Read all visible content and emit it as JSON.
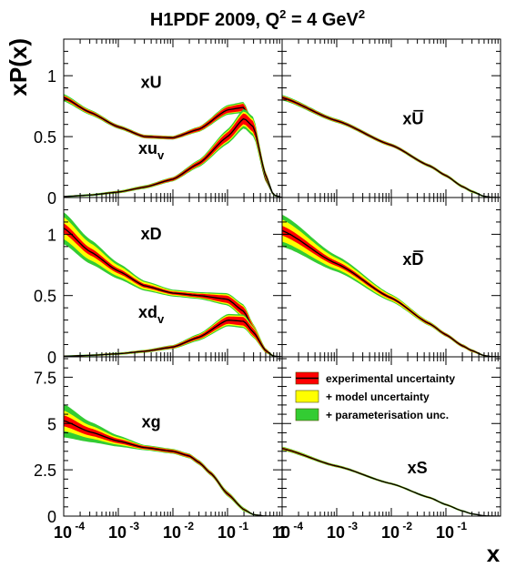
{
  "title": {
    "prefix": "H1PDF 2009, Q",
    "sup": "2",
    "suffix": " = 4 GeV",
    "sup2": "2"
  },
  "ylabel": "xP(x)",
  "xlabel": "x",
  "colors": {
    "experimental": "#ff0000",
    "model": "#ffff00",
    "parameterisation": "#33cc33",
    "central": "#000000",
    "outline": "#4d4d00"
  },
  "legend": {
    "placement": "top of right-bottom panel",
    "entries": [
      {
        "key": "experimental",
        "label": "experimental uncertainty"
      },
      {
        "key": "model",
        "label": "+ model uncertainty"
      },
      {
        "key": "parameterisation",
        "label": "+ parameterisation unc."
      }
    ]
  },
  "chart_data": [
    {
      "type": "area",
      "panel": "top-left",
      "xscale": "log",
      "xlim": [
        0.0001,
        1
      ],
      "ylim": [
        0,
        1.3
      ],
      "yticks": [
        0,
        0.5,
        1
      ],
      "ytick_labels": [
        "0",
        "0.5",
        "1"
      ],
      "series": [
        {
          "name": "xU",
          "x": [
            0.0001,
            0.0003,
            0.001,
            0.003,
            0.01,
            0.03,
            0.1,
            0.2,
            0.3,
            0.5,
            0.7,
            1
          ],
          "y": [
            0.82,
            0.7,
            0.58,
            0.5,
            0.49,
            0.56,
            0.72,
            0.74,
            0.55,
            0.15,
            0.02,
            0
          ],
          "exp": [
            0.015,
            0.012,
            0.01,
            0.01,
            0.01,
            0.015,
            0.025,
            0.03,
            0.03,
            0.015,
            0.005,
            0
          ],
          "mod": [
            0.02,
            0.016,
            0.012,
            0.012,
            0.012,
            0.018,
            0.03,
            0.035,
            0.035,
            0.018,
            0.006,
            0
          ],
          "par": [
            0.03,
            0.022,
            0.016,
            0.015,
            0.015,
            0.022,
            0.04,
            0.045,
            0.045,
            0.022,
            0.008,
            0
          ]
        },
        {
          "name": "xu",
          "sub": "v",
          "x": [
            0.0001,
            0.0003,
            0.001,
            0.003,
            0.01,
            0.03,
            0.1,
            0.2,
            0.3,
            0.5,
            0.7,
            1
          ],
          "y": [
            0.008,
            0.02,
            0.045,
            0.085,
            0.15,
            0.28,
            0.5,
            0.65,
            0.58,
            0.18,
            0.02,
            0
          ],
          "exp": [
            0.003,
            0.004,
            0.006,
            0.008,
            0.012,
            0.018,
            0.035,
            0.045,
            0.045,
            0.02,
            0.005,
            0
          ],
          "mod": [
            0.004,
            0.005,
            0.008,
            0.01,
            0.014,
            0.022,
            0.045,
            0.06,
            0.06,
            0.025,
            0.006,
            0
          ],
          "par": [
            0.006,
            0.008,
            0.011,
            0.014,
            0.018,
            0.03,
            0.06,
            0.08,
            0.08,
            0.03,
            0.008,
            0
          ]
        }
      ]
    },
    {
      "type": "area",
      "panel": "top-right",
      "xscale": "log",
      "xlim": [
        0.0001,
        1
      ],
      "ylim": [
        0,
        1.3
      ],
      "series": [
        {
          "name": "xU",
          "bar": true,
          "x": [
            0.0001,
            0.001,
            0.01,
            0.05,
            0.1,
            0.2,
            0.3,
            0.5,
            0.7,
            1
          ],
          "y": [
            0.82,
            0.63,
            0.43,
            0.26,
            0.18,
            0.09,
            0.05,
            0.01,
            0.002,
            0
          ],
          "exp": [
            0.012,
            0.01,
            0.009,
            0.008,
            0.008,
            0.007,
            0.006,
            0.003,
            0.001,
            0
          ],
          "mod": [
            0.015,
            0.012,
            0.011,
            0.01,
            0.01,
            0.009,
            0.008,
            0.004,
            0.002,
            0
          ],
          "par": [
            0.022,
            0.016,
            0.014,
            0.013,
            0.013,
            0.012,
            0.011,
            0.006,
            0.003,
            0
          ]
        }
      ]
    },
    {
      "type": "area",
      "panel": "middle-left",
      "xscale": "log",
      "xlim": [
        0.0001,
        1
      ],
      "ylim": [
        0,
        1.3
      ],
      "yticks": [
        0,
        0.5,
        1
      ],
      "ytick_labels": [
        "0",
        "0.5",
        "1"
      ],
      "series": [
        {
          "name": "xD",
          "x": [
            0.0001,
            0.0003,
            0.001,
            0.003,
            0.01,
            0.03,
            0.1,
            0.2,
            0.3,
            0.5,
            0.7,
            1
          ],
          "y": [
            1.05,
            0.86,
            0.7,
            0.58,
            0.52,
            0.5,
            0.47,
            0.37,
            0.22,
            0.05,
            0.005,
            0
          ],
          "exp": [
            0.04,
            0.03,
            0.02,
            0.015,
            0.012,
            0.015,
            0.03,
            0.035,
            0.03,
            0.012,
            0.003,
            0
          ],
          "mod": [
            0.09,
            0.07,
            0.045,
            0.03,
            0.02,
            0.02,
            0.04,
            0.045,
            0.038,
            0.015,
            0.004,
            0
          ],
          "par": [
            0.13,
            0.1,
            0.065,
            0.04,
            0.028,
            0.028,
            0.05,
            0.055,
            0.045,
            0.018,
            0.005,
            0
          ]
        },
        {
          "name": "xd",
          "sub": "v",
          "x": [
            0.0001,
            0.0003,
            0.001,
            0.003,
            0.01,
            0.03,
            0.1,
            0.2,
            0.3,
            0.5,
            0.7,
            1
          ],
          "y": [
            0.005,
            0.012,
            0.025,
            0.045,
            0.08,
            0.16,
            0.3,
            0.29,
            0.2,
            0.05,
            0.005,
            0
          ],
          "exp": [
            0.003,
            0.004,
            0.005,
            0.007,
            0.01,
            0.015,
            0.03,
            0.035,
            0.03,
            0.012,
            0.003,
            0
          ],
          "mod": [
            0.004,
            0.005,
            0.007,
            0.009,
            0.012,
            0.02,
            0.04,
            0.045,
            0.038,
            0.015,
            0.004,
            0
          ],
          "par": [
            0.006,
            0.007,
            0.009,
            0.012,
            0.016,
            0.028,
            0.05,
            0.055,
            0.045,
            0.018,
            0.005,
            0
          ]
        }
      ]
    },
    {
      "type": "area",
      "panel": "middle-right",
      "xscale": "log",
      "xlim": [
        0.0001,
        1
      ],
      "ylim": [
        0,
        1.3
      ],
      "series": [
        {
          "name": "xD",
          "bar": true,
          "x": [
            0.0001,
            0.001,
            0.01,
            0.05,
            0.1,
            0.2,
            0.3,
            0.5,
            0.7,
            1
          ],
          "y": [
            1.03,
            0.76,
            0.48,
            0.27,
            0.18,
            0.09,
            0.05,
            0.01,
            0.002,
            0
          ],
          "exp": [
            0.04,
            0.02,
            0.012,
            0.01,
            0.01,
            0.009,
            0.008,
            0.004,
            0.001,
            0
          ],
          "mod": [
            0.09,
            0.045,
            0.022,
            0.014,
            0.012,
            0.011,
            0.01,
            0.005,
            0.002,
            0
          ],
          "par": [
            0.13,
            0.065,
            0.03,
            0.018,
            0.015,
            0.014,
            0.012,
            0.006,
            0.003,
            0
          ]
        }
      ]
    },
    {
      "type": "area",
      "panel": "bottom-left",
      "xscale": "log",
      "xlim": [
        0.0001,
        1
      ],
      "ylim": [
        0,
        8.6
      ],
      "yticks": [
        0,
        2.5,
        5,
        7.5
      ],
      "ytick_labels": [
        "0",
        "2.5",
        "5",
        "7.5"
      ],
      "xtick_labels": [
        "10^-4",
        "10^-3",
        "10^-2",
        "10^-1",
        "1"
      ],
      "series": [
        {
          "name": "xg",
          "x": [
            0.0001,
            0.0003,
            0.001,
            0.003,
            0.01,
            0.02,
            0.03,
            0.05,
            0.1,
            0.2,
            0.3,
            0.5,
            1
          ],
          "y": [
            5.15,
            4.55,
            4.05,
            3.7,
            3.5,
            3.25,
            2.9,
            2.3,
            1.2,
            0.35,
            0.08,
            0.005,
            0
          ],
          "exp": [
            0.3,
            0.2,
            0.12,
            0.08,
            0.08,
            0.08,
            0.08,
            0.08,
            0.08,
            0.05,
            0.02,
            0.003,
            0
          ],
          "mod": [
            0.55,
            0.35,
            0.2,
            0.1,
            0.1,
            0.1,
            0.1,
            0.1,
            0.1,
            0.07,
            0.03,
            0.005,
            0
          ],
          "par": [
            0.9,
            0.55,
            0.3,
            0.14,
            0.13,
            0.13,
            0.13,
            0.13,
            0.14,
            0.1,
            0.04,
            0.006,
            0
          ]
        }
      ]
    },
    {
      "type": "area",
      "panel": "bottom-right",
      "xscale": "log",
      "xlim": [
        0.0001,
        1
      ],
      "ylim": [
        0,
        8.6
      ],
      "xtick_labels": [
        "10^-4",
        "10^-3",
        "10^-2",
        "10^-1"
      ],
      "series": [
        {
          "name": "xS",
          "x": [
            0.0001,
            0.001,
            0.01,
            0.05,
            0.1,
            0.2,
            0.3,
            0.5,
            0.7,
            1
          ],
          "y": [
            3.65,
            2.7,
            1.75,
            1.0,
            0.62,
            0.28,
            0.12,
            0.02,
            0.003,
            0
          ],
          "exp": [
            0.05,
            0.04,
            0.03,
            0.03,
            0.03,
            0.025,
            0.02,
            0.01,
            0.003,
            0
          ],
          "mod": [
            0.07,
            0.05,
            0.04,
            0.04,
            0.04,
            0.035,
            0.03,
            0.015,
            0.004,
            0
          ],
          "par": [
            0.1,
            0.07,
            0.055,
            0.055,
            0.055,
            0.05,
            0.04,
            0.02,
            0.006,
            0
          ]
        }
      ]
    }
  ]
}
